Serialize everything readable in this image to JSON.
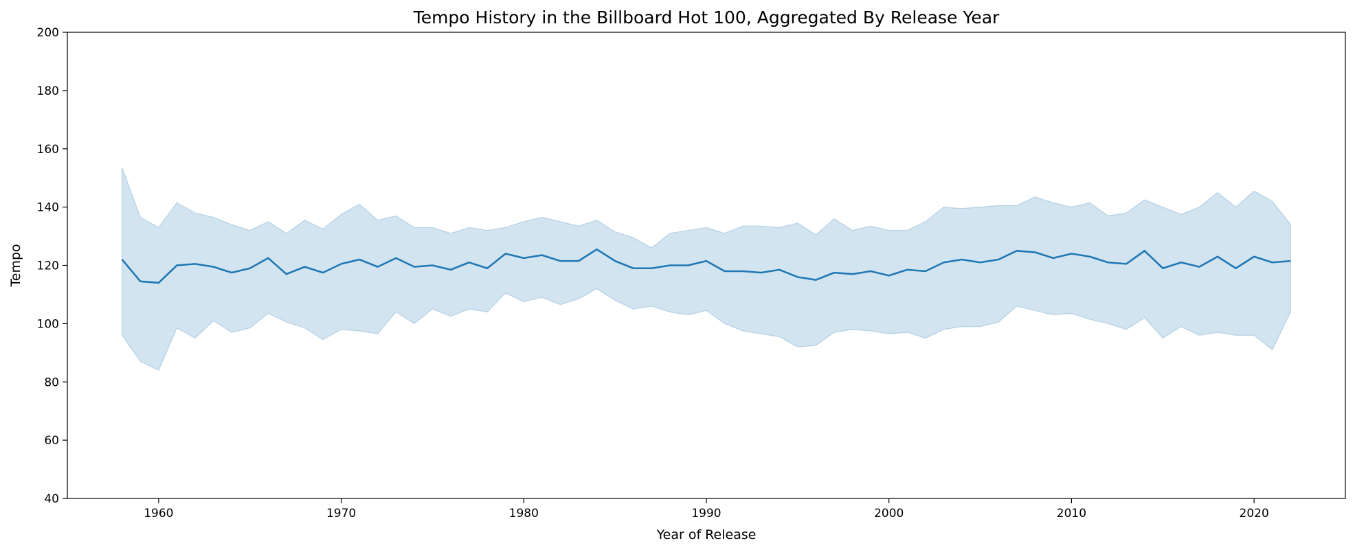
{
  "chart_data": {
    "type": "line",
    "title": "Tempo History in the Billboard Hot 100, Aggregated By Release Year",
    "xlabel": "Year of Release",
    "ylabel": "Tempo",
    "xlim": [
      1955,
      2025
    ],
    "ylim": [
      40,
      200
    ],
    "xticks": [
      1960,
      1970,
      1980,
      1990,
      2000,
      2010,
      2020
    ],
    "yticks": [
      40,
      60,
      80,
      100,
      120,
      140,
      160,
      180,
      200
    ],
    "grid": false,
    "colors": {
      "line": "#1f77b4",
      "band": "#1f77b4"
    },
    "x": [
      1958,
      1959,
      1960,
      1961,
      1962,
      1963,
      1964,
      1965,
      1966,
      1967,
      1968,
      1969,
      1970,
      1971,
      1972,
      1973,
      1974,
      1975,
      1976,
      1977,
      1978,
      1979,
      1980,
      1981,
      1982,
      1983,
      1984,
      1985,
      1986,
      1987,
      1988,
      1989,
      1990,
      1991,
      1992,
      1993,
      1994,
      1995,
      1996,
      1997,
      1998,
      1999,
      2000,
      2001,
      2002,
      2003,
      2004,
      2005,
      2006,
      2007,
      2008,
      2009,
      2010,
      2011,
      2012,
      2013,
      2014,
      2015,
      2016,
      2017,
      2018,
      2019,
      2020,
      2021,
      2022
    ],
    "series": [
      {
        "mean": [
          122,
          114.5,
          114,
          120,
          120.5,
          119.5,
          117.5,
          119,
          122.5,
          117,
          119.5,
          117.5,
          120.5,
          122,
          119.5,
          122.5,
          119.5,
          120,
          118.5,
          121,
          119,
          124,
          122.5,
          123.5,
          121.5,
          121.5,
          125.5,
          121.5,
          119,
          119,
          120,
          120,
          121.5,
          118,
          118,
          117.5,
          118.5,
          116,
          115,
          117.5,
          117,
          118,
          116.5,
          118.5,
          118,
          121,
          122,
          121,
          122,
          125,
          124.5,
          122.5,
          124,
          123,
          121,
          120.5,
          125,
          119,
          121,
          119.5,
          123,
          119,
          123,
          121,
          121.5
        ],
        "upper": [
          153.5,
          136.5,
          133,
          141.5,
          138,
          136.5,
          134,
          132,
          135,
          131,
          135.5,
          132.5,
          137.5,
          141,
          135.5,
          137,
          133,
          133,
          131,
          133,
          132,
          133,
          135,
          136.5,
          135,
          133.5,
          135.5,
          131.5,
          129.5,
          126,
          131,
          132,
          133,
          131,
          133.5,
          133.5,
          133,
          134.5,
          130.5,
          136,
          132,
          133.5,
          132,
          132,
          135,
          140,
          139.5,
          140,
          140.5,
          140.5,
          143.5,
          141.5,
          140,
          141.5,
          137,
          138,
          142.5,
          140,
          137.5,
          140,
          145,
          140,
          145.5,
          142,
          134
        ],
        "lower": [
          96,
          87,
          84,
          98.5,
          95,
          101,
          97,
          98.5,
          103.5,
          100.5,
          98.5,
          94.5,
          98,
          97.5,
          96.5,
          104,
          100,
          105,
          102.5,
          105,
          104,
          110.5,
          107.5,
          109,
          106.5,
          108.5,
          112,
          108,
          105,
          106,
          104,
          103,
          104.5,
          100,
          97.5,
          96.5,
          95.5,
          92,
          92.5,
          97,
          98,
          97.5,
          96.5,
          97,
          95,
          98,
          99,
          99,
          100.5,
          106,
          104.5,
          103,
          103.5,
          101.5,
          100,
          98,
          102,
          95,
          99,
          96,
          97,
          96,
          96,
          91,
          104
        ]
      }
    ]
  }
}
